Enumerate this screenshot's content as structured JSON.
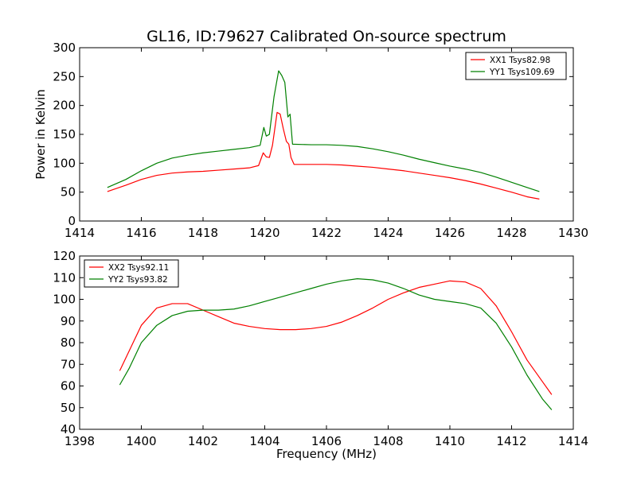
{
  "chart_data": [
    {
      "type": "line",
      "title": "GL16, ID:79627 Calibrated On-source spectrum",
      "xlabel": "",
      "ylabel": "Power in Kelvin",
      "xlim": [
        1414,
        1430
      ],
      "ylim": [
        0,
        300
      ],
      "xticks": [
        "1414",
        "1416",
        "1418",
        "1420",
        "1422",
        "1424",
        "1426",
        "1428",
        "1430"
      ],
      "yticks": [
        "0",
        "50",
        "100",
        "150",
        "200",
        "250",
        "300"
      ],
      "grid": false,
      "legend_position": "top-right",
      "series": [
        {
          "name": "XX1 Tsys82.98",
          "color": "#ff0000",
          "x": [
            1414.9,
            1415.5,
            1416,
            1416.5,
            1417,
            1417.5,
            1418,
            1418.5,
            1419,
            1419.5,
            1419.8,
            1419.95,
            1420.05,
            1420.15,
            1420.25,
            1420.4,
            1420.5,
            1420.6,
            1420.7,
            1420.78,
            1420.85,
            1420.95,
            1421.5,
            1422,
            1422.5,
            1423,
            1423.5,
            1424,
            1424.5,
            1425,
            1425.5,
            1426,
            1426.5,
            1427,
            1427.5,
            1428,
            1428.5,
            1428.9
          ],
          "y": [
            51,
            62,
            72,
            79,
            83,
            85,
            86,
            88,
            90,
            92,
            96,
            118,
            111,
            110,
            131,
            188,
            185,
            160,
            138,
            133,
            110,
            98,
            98,
            98,
            97,
            95,
            93,
            90,
            87,
            83,
            79,
            75,
            70,
            64,
            57,
            50,
            42,
            38
          ]
        },
        {
          "name": "YY1 Tsys109.69",
          "color": "#008000",
          "x": [
            1414.9,
            1415.5,
            1416,
            1416.5,
            1417,
            1417.5,
            1418,
            1418.5,
            1419,
            1419.5,
            1419.85,
            1419.97,
            1420.05,
            1420.15,
            1420.3,
            1420.45,
            1420.55,
            1420.65,
            1420.75,
            1420.82,
            1420.9,
            1421.5,
            1422,
            1422.5,
            1423,
            1423.5,
            1424,
            1424.5,
            1425,
            1425.5,
            1426,
            1426.5,
            1427,
            1427.5,
            1428,
            1428.5,
            1428.9
          ],
          "y": [
            58,
            72,
            87,
            100,
            109,
            114,
            118,
            121,
            124,
            127,
            131,
            162,
            147,
            150,
            215,
            260,
            252,
            240,
            180,
            185,
            133,
            132,
            132,
            131,
            129,
            125,
            120,
            114,
            107,
            101,
            95,
            90,
            84,
            76,
            67,
            58,
            51
          ]
        }
      ]
    },
    {
      "type": "line",
      "title": "",
      "xlabel": "Frequency (MHz)",
      "ylabel": "",
      "xlim": [
        1398,
        1414
      ],
      "ylim": [
        40,
        120
      ],
      "xticks": [
        "1398",
        "1400",
        "1402",
        "1404",
        "1406",
        "1408",
        "1410",
        "1412",
        "1414"
      ],
      "yticks": [
        "40",
        "50",
        "60",
        "70",
        "80",
        "90",
        "100",
        "110",
        "120"
      ],
      "grid": false,
      "legend_position": "top-left",
      "series": [
        {
          "name": "XX2 Tsys92.11",
          "color": "#ff0000",
          "x": [
            1399.3,
            1399.6,
            1400,
            1400.5,
            1401,
            1401.5,
            1402,
            1402.5,
            1403,
            1403.5,
            1404,
            1404.5,
            1405,
            1405.5,
            1406,
            1406.5,
            1407,
            1407.5,
            1408,
            1408.5,
            1409,
            1409.5,
            1410,
            1410.5,
            1411,
            1411.5,
            1412,
            1412.5,
            1413,
            1413.3
          ],
          "y": [
            67,
            76,
            88,
            96,
            98,
            98,
            95,
            92,
            89,
            87.5,
            86.5,
            86,
            86,
            86.5,
            87.5,
            89.5,
            92.5,
            96,
            100,
            103,
            105.5,
            107,
            108.5,
            108,
            105,
            97,
            85,
            72,
            62,
            56
          ]
        },
        {
          "name": "YY2 Tsys93.82",
          "color": "#008000",
          "x": [
            1399.3,
            1399.6,
            1400,
            1400.5,
            1401,
            1401.5,
            1402,
            1402.5,
            1403,
            1403.5,
            1404,
            1404.5,
            1405,
            1405.5,
            1406,
            1406.5,
            1407,
            1407.5,
            1408,
            1408.5,
            1409,
            1409.5,
            1410,
            1410.5,
            1411,
            1411.5,
            1412,
            1412.5,
            1413,
            1413.3
          ],
          "y": [
            60.5,
            68,
            80,
            88,
            92.5,
            94.5,
            95,
            95,
            95.5,
            97,
            99,
            101,
            103,
            105,
            107,
            108.5,
            109.5,
            109,
            107.5,
            105,
            102,
            100,
            99,
            98,
            96,
            89,
            78,
            65,
            54,
            49
          ]
        }
      ]
    }
  ]
}
